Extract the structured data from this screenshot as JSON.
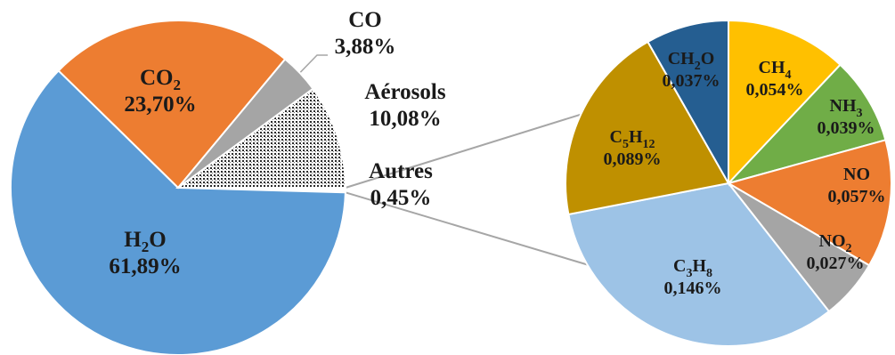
{
  "chart_data": [
    {
      "type": "pie",
      "categories": [
        "H2O",
        "CO2",
        "CO",
        "Aérosols",
        "Autres"
      ],
      "values": [
        61.89,
        23.7,
        3.88,
        10.08,
        0.45
      ],
      "colors": [
        "#5b9bd5",
        "#ed7d31",
        "#a5a5a5",
        "#d0d0d0",
        "#ffffff"
      ],
      "patterns": [
        "solid",
        "solid",
        "solid",
        "dotted",
        "solid"
      ],
      "labels": [
        {
          "main": "H",
          "sub": "2",
          "rest": "O",
          "value": "61,89%"
        },
        {
          "main": "CO",
          "sub": "2",
          "rest": "",
          "value": "23,70%"
        },
        {
          "main": "CO",
          "sub": "",
          "rest": "",
          "value": "3,88%"
        },
        {
          "main": "Aérosols",
          "sub": "",
          "rest": "",
          "value": "10,08%"
        },
        {
          "main": "Autres",
          "sub": "",
          "rest": "",
          "value": "0,45%"
        }
      ]
    },
    {
      "type": "pie",
      "categories": [
        "CH4",
        "NH3",
        "NO",
        "NO2",
        "C3H8",
        "C5H12",
        "CH2O"
      ],
      "values": [
        0.054,
        0.039,
        0.057,
        0.027,
        0.146,
        0.089,
        0.037
      ],
      "colors": [
        "#ffc000",
        "#70ad47",
        "#ed7d31",
        "#a5a5a5",
        "#9dc3e6",
        "#bf9000",
        "#255e91"
      ],
      "labels": [
        {
          "parts": [
            {
              "t": "CH"
            },
            {
              "t": "4",
              "sub": true
            }
          ],
          "value": "0,054%"
        },
        {
          "parts": [
            {
              "t": "NH"
            },
            {
              "t": "3",
              "sub": true
            }
          ],
          "value": "0,039%"
        },
        {
          "parts": [
            {
              "t": "NO"
            }
          ],
          "value": "0,057%"
        },
        {
          "parts": [
            {
              "t": "NO"
            },
            {
              "t": "2",
              "sub": true
            }
          ],
          "value": "0,027%"
        },
        {
          "parts": [
            {
              "t": "C"
            },
            {
              "t": "3",
              "sub": true
            },
            {
              "t": "H"
            },
            {
              "t": "8",
              "sub": true
            }
          ],
          "value": "0,146%"
        },
        {
          "parts": [
            {
              "t": "C"
            },
            {
              "t": "5",
              "sub": true
            },
            {
              "t": "H"
            },
            {
              "t": "12",
              "sub": true
            }
          ],
          "value": "0,089%"
        },
        {
          "parts": [
            {
              "t": "CH"
            },
            {
              "t": "2",
              "sub": true
            },
            {
              "t": "O"
            }
          ],
          "value": "0,037%"
        }
      ]
    }
  ]
}
